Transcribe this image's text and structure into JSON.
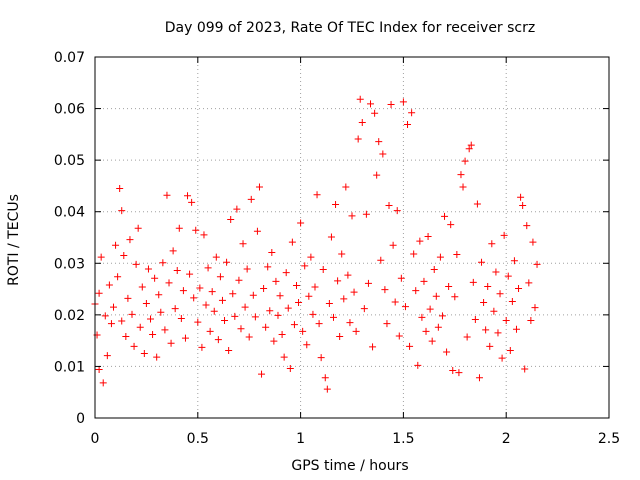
{
  "chart_data": {
    "type": "scatter",
    "title": "Day 099 of 2023, Rate Of TEC Index for receiver scrz",
    "xlabel": "GPS time / hours",
    "ylabel": "ROTI / TECUs",
    "xlim": [
      0,
      2.5
    ],
    "ylim": [
      0,
      0.07
    ],
    "x_ticks": [
      0,
      0.5,
      1,
      1.5,
      2,
      2.5
    ],
    "x_tick_labels": [
      "0",
      "0.5",
      "1",
      "1.5",
      "2",
      "2.5"
    ],
    "y_ticks": [
      0,
      0.01,
      0.02,
      0.03,
      0.04,
      0.05,
      0.06,
      0.07
    ],
    "y_tick_labels": [
      "0",
      "0.01",
      "0.02",
      "0.03",
      "0.04",
      "0.05",
      "0.06",
      "0.07"
    ],
    "grid": true,
    "marker": "plus",
    "color": "#ff0000",
    "series": [
      {
        "points": [
          [
            0.0,
            0.0221
          ],
          [
            0.01,
            0.0161
          ],
          [
            0.02,
            0.0242
          ],
          [
            0.02,
            0.0094
          ],
          [
            0.03,
            0.0312
          ],
          [
            0.04,
            0.0068
          ],
          [
            0.05,
            0.0198
          ],
          [
            0.06,
            0.0121
          ],
          [
            0.07,
            0.0258
          ],
          [
            0.08,
            0.0183
          ],
          [
            0.09,
            0.0215
          ],
          [
            0.1,
            0.0335
          ],
          [
            0.11,
            0.0274
          ],
          [
            0.12,
            0.0445
          ],
          [
            0.13,
            0.0402
          ],
          [
            0.13,
            0.0188
          ],
          [
            0.14,
            0.0315
          ],
          [
            0.15,
            0.0158
          ],
          [
            0.16,
            0.0232
          ],
          [
            0.17,
            0.0346
          ],
          [
            0.18,
            0.0201
          ],
          [
            0.19,
            0.0139
          ],
          [
            0.2,
            0.0298
          ],
          [
            0.21,
            0.0368
          ],
          [
            0.22,
            0.0176
          ],
          [
            0.23,
            0.0254
          ],
          [
            0.24,
            0.0125
          ],
          [
            0.25,
            0.0222
          ],
          [
            0.26,
            0.0289
          ],
          [
            0.27,
            0.0192
          ],
          [
            0.28,
            0.0162
          ],
          [
            0.29,
            0.0271
          ],
          [
            0.3,
            0.0118
          ],
          [
            0.31,
            0.0239
          ],
          [
            0.32,
            0.0205
          ],
          [
            0.33,
            0.0301
          ],
          [
            0.34,
            0.0171
          ],
          [
            0.35,
            0.0432
          ],
          [
            0.36,
            0.0262
          ],
          [
            0.37,
            0.0145
          ],
          [
            0.38,
            0.0324
          ],
          [
            0.39,
            0.0212
          ],
          [
            0.4,
            0.0286
          ],
          [
            0.41,
            0.0368
          ],
          [
            0.42,
            0.0193
          ],
          [
            0.43,
            0.0247
          ],
          [
            0.44,
            0.0155
          ],
          [
            0.45,
            0.0431
          ],
          [
            0.46,
            0.0279
          ],
          [
            0.47,
            0.0418
          ],
          [
            0.48,
            0.0233
          ],
          [
            0.49,
            0.0364
          ],
          [
            0.5,
            0.0186
          ],
          [
            0.51,
            0.0252
          ],
          [
            0.52,
            0.0137
          ],
          [
            0.53,
            0.0355
          ],
          [
            0.54,
            0.0219
          ],
          [
            0.55,
            0.0291
          ],
          [
            0.56,
            0.0168
          ],
          [
            0.57,
            0.0245
          ],
          [
            0.58,
            0.0207
          ],
          [
            0.59,
            0.0312
          ],
          [
            0.6,
            0.0152
          ],
          [
            0.61,
            0.0274
          ],
          [
            0.62,
            0.0228
          ],
          [
            0.63,
            0.0189
          ],
          [
            0.64,
            0.0302
          ],
          [
            0.65,
            0.0131
          ],
          [
            0.66,
            0.0385
          ],
          [
            0.67,
            0.0241
          ],
          [
            0.68,
            0.0197
          ],
          [
            0.69,
            0.0405
          ],
          [
            0.7,
            0.0267
          ],
          [
            0.71,
            0.0173
          ],
          [
            0.72,
            0.0338
          ],
          [
            0.73,
            0.0215
          ],
          [
            0.74,
            0.0289
          ],
          [
            0.75,
            0.0157
          ],
          [
            0.76,
            0.0424
          ],
          [
            0.77,
            0.0238
          ],
          [
            0.78,
            0.0196
          ],
          [
            0.79,
            0.0362
          ],
          [
            0.8,
            0.0448
          ],
          [
            0.81,
            0.0085
          ],
          [
            0.82,
            0.0251
          ],
          [
            0.83,
            0.0176
          ],
          [
            0.84,
            0.0293
          ],
          [
            0.85,
            0.0208
          ],
          [
            0.86,
            0.0321
          ],
          [
            0.87,
            0.0149
          ],
          [
            0.88,
            0.0265
          ],
          [
            0.89,
            0.0199
          ],
          [
            0.9,
            0.0237
          ],
          [
            0.91,
            0.0162
          ],
          [
            0.92,
            0.0118
          ],
          [
            0.93,
            0.0282
          ],
          [
            0.94,
            0.0213
          ],
          [
            0.95,
            0.0096
          ],
          [
            0.96,
            0.0341
          ],
          [
            0.97,
            0.0181
          ],
          [
            0.98,
            0.0257
          ],
          [
            0.99,
            0.0224
          ],
          [
            1.0,
            0.0378
          ],
          [
            1.01,
            0.0168
          ],
          [
            1.02,
            0.0295
          ],
          [
            1.03,
            0.0142
          ],
          [
            1.04,
            0.0236
          ],
          [
            1.05,
            0.0312
          ],
          [
            1.06,
            0.0201
          ],
          [
            1.07,
            0.0254
          ],
          [
            1.08,
            0.0433
          ],
          [
            1.09,
            0.0183
          ],
          [
            1.1,
            0.0117
          ],
          [
            1.11,
            0.0288
          ],
          [
            1.12,
            0.0078
          ],
          [
            1.13,
            0.0056
          ],
          [
            1.14,
            0.0222
          ],
          [
            1.15,
            0.0351
          ],
          [
            1.16,
            0.0195
          ],
          [
            1.17,
            0.0414
          ],
          [
            1.18,
            0.0266
          ],
          [
            1.19,
            0.0158
          ],
          [
            1.2,
            0.0318
          ],
          [
            1.21,
            0.0231
          ],
          [
            1.22,
            0.0448
          ],
          [
            1.23,
            0.0277
          ],
          [
            1.24,
            0.0185
          ],
          [
            1.25,
            0.0392
          ],
          [
            1.26,
            0.0244
          ],
          [
            1.27,
            0.0168
          ],
          [
            1.28,
            0.0541
          ],
          [
            1.29,
            0.0618
          ],
          [
            1.3,
            0.0573
          ],
          [
            1.31,
            0.0212
          ],
          [
            1.32,
            0.0395
          ],
          [
            1.33,
            0.0261
          ],
          [
            1.34,
            0.0609
          ],
          [
            1.35,
            0.0138
          ],
          [
            1.36,
            0.0591
          ],
          [
            1.37,
            0.0471
          ],
          [
            1.38,
            0.0536
          ],
          [
            1.39,
            0.0306
          ],
          [
            1.4,
            0.0512
          ],
          [
            1.41,
            0.0249
          ],
          [
            1.42,
            0.0183
          ],
          [
            1.43,
            0.0412
          ],
          [
            1.44,
            0.0608
          ],
          [
            1.45,
            0.0335
          ],
          [
            1.46,
            0.0225
          ],
          [
            1.47,
            0.0402
          ],
          [
            1.48,
            0.0159
          ],
          [
            1.49,
            0.0271
          ],
          [
            1.5,
            0.0613
          ],
          [
            1.51,
            0.0216
          ],
          [
            1.52,
            0.0569
          ],
          [
            1.53,
            0.0139
          ],
          [
            1.54,
            0.0592
          ],
          [
            1.55,
            0.0318
          ],
          [
            1.56,
            0.0247
          ],
          [
            1.57,
            0.0102
          ],
          [
            1.58,
            0.0343
          ],
          [
            1.59,
            0.0195
          ],
          [
            1.6,
            0.0265
          ],
          [
            1.61,
            0.0168
          ],
          [
            1.62,
            0.0352
          ],
          [
            1.63,
            0.0211
          ],
          [
            1.64,
            0.0149
          ],
          [
            1.65,
            0.0288
          ],
          [
            1.66,
            0.0236
          ],
          [
            1.67,
            0.0176
          ],
          [
            1.68,
            0.0312
          ],
          [
            1.69,
            0.0198
          ],
          [
            1.7,
            0.0391
          ],
          [
            1.71,
            0.0128
          ],
          [
            1.72,
            0.0255
          ],
          [
            1.73,
            0.0375
          ],
          [
            1.74,
            0.0092
          ],
          [
            1.75,
            0.0235
          ],
          [
            1.76,
            0.0317
          ],
          [
            1.77,
            0.0088
          ],
          [
            1.78,
            0.0472
          ],
          [
            1.79,
            0.0448
          ],
          [
            1.8,
            0.0498
          ],
          [
            1.81,
            0.0157
          ],
          [
            1.82,
            0.0522
          ],
          [
            1.83,
            0.0529
          ],
          [
            1.84,
            0.0263
          ],
          [
            1.85,
            0.0191
          ],
          [
            1.86,
            0.0415
          ],
          [
            1.87,
            0.0078
          ],
          [
            1.88,
            0.0302
          ],
          [
            1.89,
            0.0224
          ],
          [
            1.9,
            0.0171
          ],
          [
            1.91,
            0.0255
          ],
          [
            1.92,
            0.0139
          ],
          [
            1.93,
            0.0338
          ],
          [
            1.94,
            0.0207
          ],
          [
            1.95,
            0.0283
          ],
          [
            1.96,
            0.0165
          ],
          [
            1.97,
            0.0241
          ],
          [
            1.98,
            0.0116
          ],
          [
            1.99,
            0.0354
          ],
          [
            2.0,
            0.0189
          ],
          [
            2.01,
            0.0275
          ],
          [
            2.02,
            0.0131
          ],
          [
            2.03,
            0.0226
          ],
          [
            2.04,
            0.0305
          ],
          [
            2.05,
            0.0172
          ],
          [
            2.06,
            0.0251
          ],
          [
            2.07,
            0.0428
          ],
          [
            2.08,
            0.0412
          ],
          [
            2.09,
            0.0095
          ],
          [
            2.1,
            0.0373
          ],
          [
            2.11,
            0.0262
          ],
          [
            2.12,
            0.0189
          ],
          [
            2.13,
            0.0341
          ],
          [
            2.14,
            0.0214
          ],
          [
            2.15,
            0.0298
          ]
        ]
      }
    ]
  }
}
